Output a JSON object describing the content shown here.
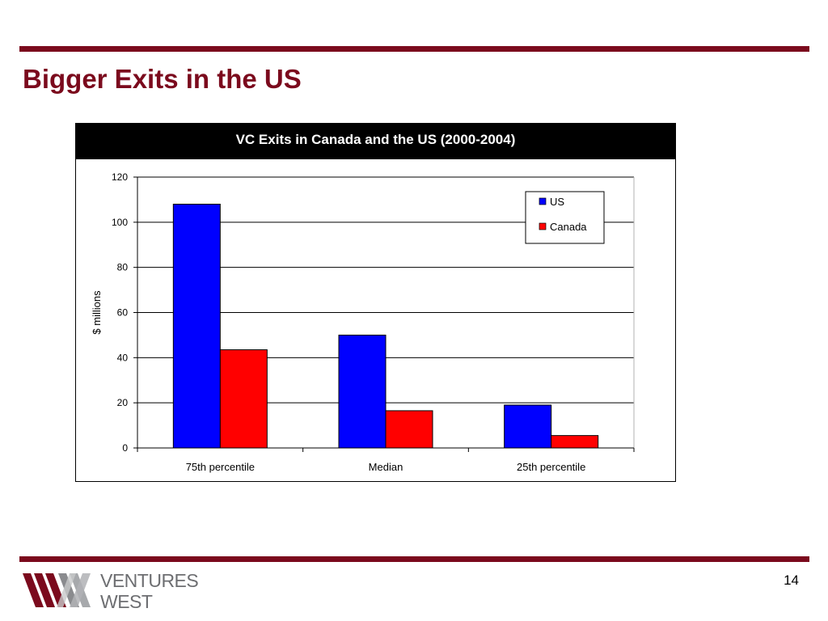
{
  "slide": {
    "title": "Bigger Exits in the US",
    "page_number": "14",
    "accent_color": "#7b0a1d"
  },
  "logo": {
    "line1": "VENTURES",
    "line2": "WEST",
    "text_color": "#6d6e71"
  },
  "chart_data": {
    "type": "bar",
    "title": "VC Exits in Canada and the US (2000-2004)",
    "xlabel": "",
    "ylabel": "$ millions",
    "categories": [
      "75th percentile",
      "Median",
      "25th percentile"
    ],
    "series": [
      {
        "name": "US",
        "values": [
          108,
          50,
          19
        ],
        "color": "#0000ff"
      },
      {
        "name": "Canada",
        "values": [
          43.5,
          16.5,
          5.5
        ],
        "color": "#ff0000"
      }
    ],
    "ylim": [
      0,
      120
    ],
    "yticks": [
      0,
      20,
      40,
      60,
      80,
      100,
      120
    ],
    "grid": true,
    "legend_position": "top-right"
  }
}
